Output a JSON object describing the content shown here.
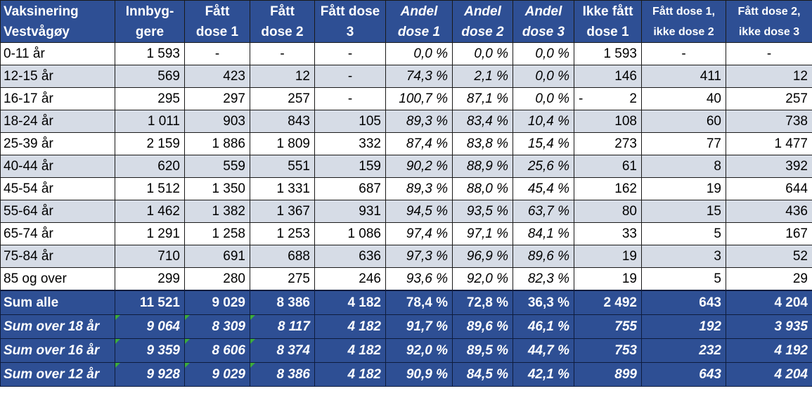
{
  "headers": [
    [
      "Vaksinering",
      "Vestvågøy"
    ],
    [
      "Innbyg-",
      "gere"
    ],
    [
      "Fått",
      "dose 1"
    ],
    [
      "Fått",
      "dose 2"
    ],
    [
      "Fått dose",
      "3"
    ],
    [
      "Andel",
      "dose 1"
    ],
    [
      "Andel",
      "dose 2"
    ],
    [
      "Andel",
      "dose 3"
    ],
    [
      "Ikke fått",
      "dose 1"
    ],
    [
      "Fått dose 1,",
      "ikke dose 2"
    ],
    [
      "Fått dose 2,",
      "ikke dose 3"
    ]
  ],
  "rows": [
    [
      "0-11 år",
      "1 593",
      "-",
      "-",
      "-",
      "0,0 %",
      "0,0 %",
      "0,0 %",
      "1 593",
      "-",
      "-"
    ],
    [
      "12-15 år",
      "569",
      "423",
      "12",
      "-",
      "74,3 %",
      "2,1 %",
      "0,0 %",
      "146",
      "411",
      "12"
    ],
    [
      "16-17 år",
      "295",
      "297",
      "257",
      "-",
      "100,7 %",
      "87,1 %",
      "0,0 %",
      "- 2",
      "40",
      "257"
    ],
    [
      "18-24 år",
      "1 011",
      "903",
      "843",
      "105",
      "89,3 %",
      "83,4 %",
      "10,4 %",
      "108",
      "60",
      "738"
    ],
    [
      "25-39 år",
      "2 159",
      "1 886",
      "1 809",
      "332",
      "87,4 %",
      "83,8 %",
      "15,4 %",
      "273",
      "77",
      "1 477"
    ],
    [
      "40-44 år",
      "620",
      "559",
      "551",
      "159",
      "90,2 %",
      "88,9 %",
      "25,6 %",
      "61",
      "8",
      "392"
    ],
    [
      "45-54 år",
      "1 512",
      "1 350",
      "1 331",
      "687",
      "89,3 %",
      "88,0 %",
      "45,4 %",
      "162",
      "19",
      "644"
    ],
    [
      "55-64 år",
      "1 462",
      "1 382",
      "1 367",
      "931",
      "94,5 %",
      "93,5 %",
      "63,7 %",
      "80",
      "15",
      "436"
    ],
    [
      "65-74 år",
      "1 291",
      "1 258",
      "1 253",
      "1 086",
      "97,4 %",
      "97,1 %",
      "84,1 %",
      "33",
      "5",
      "167"
    ],
    [
      "75-84 år",
      "710",
      "691",
      "688",
      "636",
      "97,3 %",
      "96,9 %",
      "89,6 %",
      "19",
      "3",
      "52"
    ],
    [
      "85 og over",
      "299",
      "280",
      "275",
      "246",
      "93,6 %",
      "92,0 %",
      "82,3 %",
      "19",
      "5",
      "29"
    ]
  ],
  "sums": [
    [
      "Sum alle",
      "11 521",
      "9 029",
      "8 386",
      "4 182",
      "78,4 %",
      "72,8 %",
      "36,3 %",
      "2 492",
      "643",
      "4 204"
    ],
    [
      "Sum over 18 år",
      "9 064",
      "8 309",
      "8 117",
      "4 182",
      "91,7 %",
      "89,6 %",
      "46,1 %",
      "755",
      "192",
      "3 935"
    ],
    [
      "Sum over 16 år",
      "9 359",
      "8 606",
      "8 374",
      "4 182",
      "92,0 %",
      "89,5 %",
      "44,7 %",
      "753",
      "232",
      "4 192"
    ],
    [
      "Sum over 12 år",
      "9 928",
      "9 029",
      "8 386",
      "4 182",
      "90,9 %",
      "84,5 %",
      "42,1 %",
      "899",
      "643",
      "4 204"
    ]
  ],
  "colors": {
    "header_bg": "#2e4f94",
    "row_alt": "#d6dce6",
    "error_indicator": "#3cad3c"
  }
}
